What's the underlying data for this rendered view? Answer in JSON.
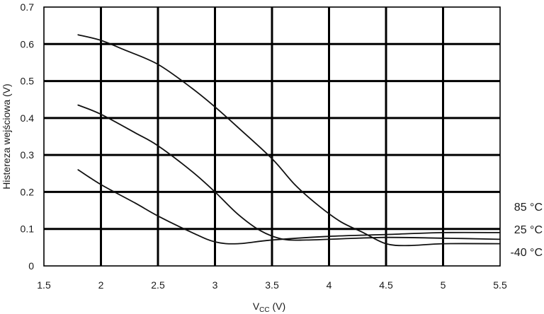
{
  "chart_data": {
    "type": "line",
    "title": "",
    "xlabel": {
      "main": "V",
      "sub": "CC",
      "unit": " (V)"
    },
    "ylabel": "Histereza wejściowa (V)",
    "xlim": [
      1.5,
      5.5
    ],
    "ylim": [
      0,
      0.7
    ],
    "x_ticks": [
      1.5,
      2,
      2.5,
      3,
      3.5,
      4,
      4.5,
      5,
      5.5
    ],
    "x_tick_labels": [
      "1.5",
      "2",
      "2.5",
      "3",
      "3.5",
      "4",
      "4.5",
      "5",
      "5.5"
    ],
    "y_ticks": [
      0,
      0.1,
      0.2,
      0.3,
      0.4,
      0.5,
      0.6,
      0.7
    ],
    "y_tick_labels": [
      "0",
      "0.1",
      "0.2",
      "0.3",
      "0.4",
      "0.5",
      "0.6",
      "0.7"
    ],
    "grid": true,
    "series": [
      {
        "name": "85 °C",
        "x": [
          1.8,
          2.0,
          2.2,
          2.5,
          2.8,
          3.0,
          3.2,
          3.5,
          3.7,
          3.9,
          4.1,
          4.3,
          4.5,
          4.7,
          5.0,
          5.5
        ],
        "y": [
          0.625,
          0.61,
          0.585,
          0.545,
          0.48,
          0.43,
          0.375,
          0.29,
          0.22,
          0.165,
          0.12,
          0.09,
          0.06,
          0.055,
          0.06,
          0.06
        ]
      },
      {
        "name": "25 °C",
        "x": [
          1.8,
          2.0,
          2.3,
          2.5,
          2.8,
          3.0,
          3.2,
          3.4,
          3.6,
          3.8,
          4.0,
          4.5,
          5.0,
          5.5
        ],
        "y": [
          0.435,
          0.41,
          0.36,
          0.325,
          0.255,
          0.2,
          0.14,
          0.095,
          0.072,
          0.07,
          0.072,
          0.077,
          0.075,
          0.072
        ]
      },
      {
        "name": "-40 °C",
        "x": [
          1.8,
          2.0,
          2.3,
          2.5,
          2.8,
          3.0,
          3.2,
          3.5,
          4.0,
          4.5,
          5.0,
          5.5
        ],
        "y": [
          0.26,
          0.22,
          0.17,
          0.135,
          0.09,
          0.065,
          0.06,
          0.07,
          0.08,
          0.085,
          0.09,
          0.09
        ]
      }
    ]
  }
}
